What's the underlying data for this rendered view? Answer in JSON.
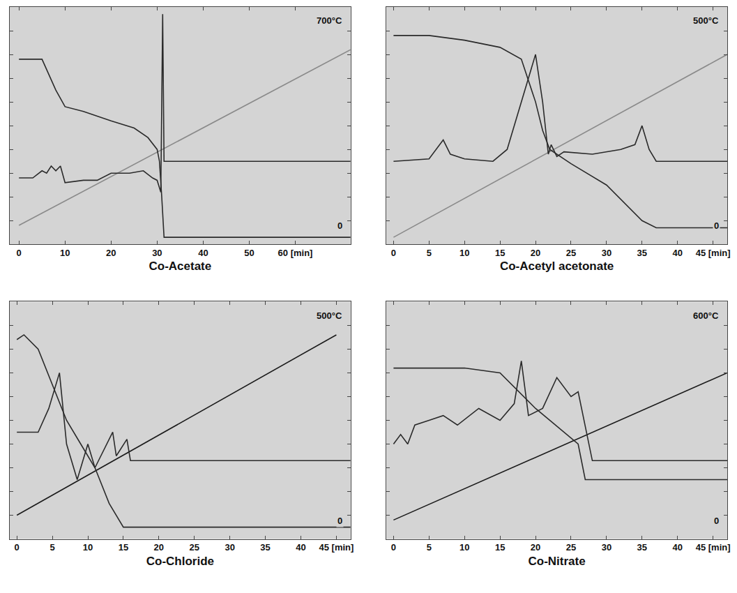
{
  "chart_data": [
    {
      "type": "line",
      "title": "Co-Acetate",
      "annotations": [
        "700°C",
        "0"
      ],
      "xlim": [
        -2,
        72
      ],
      "xticks": [
        0,
        10,
        20,
        30,
        40,
        50,
        {
          "value": 60,
          "label": "60 [min]"
        }
      ],
      "ylim": [
        0,
        100
      ],
      "yticks": [
        0,
        10,
        20,
        30,
        40,
        50,
        60,
        70,
        80,
        90,
        100
      ],
      "tick_labels": "x",
      "grid": false,
      "series": [
        {
          "color": "#8a8a8a",
          "x": [
            0,
            72
          ],
          "values": [
            8,
            82
          ]
        },
        {
          "color": "#2a2a2a",
          "x": [
            0,
            5,
            8,
            10,
            14,
            20,
            25,
            28,
            30,
            30.5,
            31,
            31.5,
            40,
            50,
            60,
            72
          ],
          "values": [
            78,
            78,
            65,
            58,
            56,
            52,
            49,
            45,
            40,
            35,
            20,
            3,
            3,
            3,
            3,
            3
          ]
        },
        {
          "color": "#2a2a2a",
          "x": [
            0,
            3,
            5,
            6,
            7,
            8,
            9,
            10,
            14,
            17,
            20,
            24,
            27,
            29,
            30,
            30.8,
            31.2,
            31.5,
            40,
            55,
            72
          ],
          "values": [
            28,
            28,
            31,
            30,
            33,
            31,
            33,
            26,
            27,
            27,
            30,
            30,
            31,
            28,
            27,
            22,
            97,
            35,
            35,
            35,
            35
          ]
        }
      ]
    },
    {
      "type": "line",
      "title": "Co-Acetyl acetonate",
      "annotations": [
        "500°C",
        "0"
      ],
      "xlim": [
        -1,
        47
      ],
      "xticks": [
        0,
        5,
        10,
        15,
        20,
        25,
        30,
        35,
        40,
        {
          "value": 45,
          "label": "45 [min]"
        }
      ],
      "ylim": [
        0,
        100
      ],
      "yticks": [
        0,
        10,
        20,
        30,
        40,
        50,
        60,
        70,
        80,
        90,
        100
      ],
      "tick_labels": "x",
      "grid": false,
      "series": [
        {
          "color": "#8a8a8a",
          "x": [
            0,
            47
          ],
          "values": [
            3,
            80
          ]
        },
        {
          "color": "#2a2a2a",
          "x": [
            0,
            5,
            10,
            15,
            18,
            20,
            21,
            22,
            25,
            30,
            35,
            37,
            47
          ],
          "values": [
            88,
            88,
            86,
            83,
            78,
            60,
            48,
            40,
            34,
            25,
            10,
            7,
            7
          ]
        },
        {
          "color": "#2a2a2a",
          "x": [
            0,
            5,
            7,
            8,
            10,
            14,
            16,
            18,
            20,
            21,
            21.8,
            22.2,
            23,
            24,
            28,
            32,
            34,
            35,
            36,
            37,
            47
          ],
          "values": [
            35,
            36,
            44,
            38,
            36,
            35,
            40,
            60,
            80,
            60,
            38,
            42,
            37,
            39,
            38,
            40,
            42,
            50,
            40,
            35,
            35
          ]
        }
      ]
    },
    {
      "type": "line",
      "title": "Co-Chloride",
      "annotations": [
        "500°C",
        "0"
      ],
      "xlim": [
        -1,
        47
      ],
      "xticks": [
        0,
        5,
        10,
        15,
        20,
        25,
        30,
        35,
        40,
        {
          "value": 45,
          "label": "45 [min]"
        }
      ],
      "ylim": [
        0,
        100
      ],
      "yticks": [
        0,
        10,
        20,
        30,
        40,
        50,
        60,
        70,
        80,
        90,
        100
      ],
      "tick_labels": "x",
      "grid": false,
      "series": [
        {
          "color": "#1a1a1a",
          "x": [
            0,
            45
          ],
          "values": [
            10,
            86
          ]
        },
        {
          "color": "#2a2a2a",
          "x": [
            0,
            1,
            3,
            5,
            7,
            9,
            11,
            13,
            15,
            20,
            30,
            47
          ],
          "values": [
            84,
            86,
            80,
            65,
            50,
            40,
            30,
            15,
            5,
            5,
            5,
            5
          ]
        },
        {
          "color": "#2a2a2a",
          "x": [
            0,
            3,
            4.5,
            6,
            7,
            8.5,
            10,
            11,
            13.5,
            14,
            15.5,
            16,
            30,
            47
          ],
          "values": [
            45,
            45,
            55,
            70,
            40,
            25,
            40,
            30,
            45,
            35,
            42,
            33,
            33,
            33
          ]
        }
      ]
    },
    {
      "type": "line",
      "title": "Co-Nitrate",
      "annotations": [
        "600°C",
        "0"
      ],
      "xlim": [
        -1,
        47
      ],
      "xticks": [
        0,
        5,
        10,
        15,
        20,
        25,
        30,
        35,
        40,
        {
          "value": 45,
          "label": "45 [min]"
        }
      ],
      "ylim": [
        0,
        100
      ],
      "yticks": [
        0,
        10,
        20,
        30,
        40,
        50,
        60,
        70,
        80,
        90,
        100
      ],
      "tick_labels": "x",
      "grid": false,
      "series": [
        {
          "color": "#1a1a1a",
          "x": [
            0,
            47
          ],
          "values": [
            8,
            70
          ]
        },
        {
          "color": "#2a2a2a",
          "x": [
            0,
            10,
            15,
            20,
            22,
            26,
            27,
            35,
            47
          ],
          "values": [
            72,
            72,
            70,
            55,
            50,
            40,
            25,
            25,
            25
          ]
        },
        {
          "color": "#2a2a2a",
          "x": [
            0,
            1,
            2,
            3,
            5,
            7,
            9,
            12,
            15,
            17,
            18,
            19,
            21,
            23,
            25,
            26,
            28,
            35,
            47
          ],
          "values": [
            40,
            44,
            40,
            48,
            50,
            52,
            48,
            55,
            50,
            57,
            75,
            52,
            55,
            68,
            60,
            62,
            33,
            33,
            33
          ]
        }
      ]
    }
  ]
}
